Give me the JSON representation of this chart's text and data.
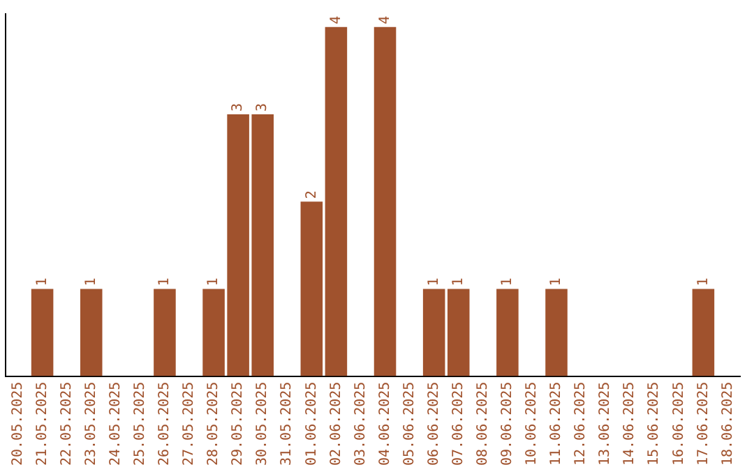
{
  "chart_data": {
    "type": "bar",
    "categories": [
      "20.05.2025",
      "21.05.2025",
      "22.05.2025",
      "23.05.2025",
      "24.05.2025",
      "25.05.2025",
      "26.05.2025",
      "27.05.2025",
      "28.05.2025",
      "29.05.2025",
      "30.05.2025",
      "31.05.2025",
      "01.06.2025",
      "02.06.2025",
      "03.06.2025",
      "04.06.2025",
      "05.06.2025",
      "06.06.2025",
      "07.06.2025",
      "08.06.2025",
      "09.06.2025",
      "10.06.2025",
      "11.06.2025",
      "12.06.2025",
      "13.06.2025",
      "14.06.2025",
      "15.06.2025",
      "16.06.2025",
      "17.06.2025",
      "18.06.2025"
    ],
    "values": [
      0,
      1,
      0,
      1,
      0,
      0,
      1,
      0,
      1,
      3,
      3,
      0,
      2,
      4,
      0,
      4,
      0,
      1,
      1,
      0,
      1,
      0,
      1,
      0,
      0,
      0,
      0,
      0,
      1,
      0
    ],
    "value_labels": [
      null,
      "1",
      null,
      "1",
      null,
      null,
      "1",
      null,
      "1",
      "3",
      "3",
      null,
      "2",
      "4",
      null,
      "4",
      null,
      "1",
      "1",
      null,
      "1",
      null,
      "1",
      null,
      null,
      null,
      null,
      null,
      "1",
      null
    ],
    "color": "#a0522d",
    "ylim": [
      0,
      4.15
    ],
    "tick_labels": "x",
    "grid": false,
    "legend": false
  }
}
